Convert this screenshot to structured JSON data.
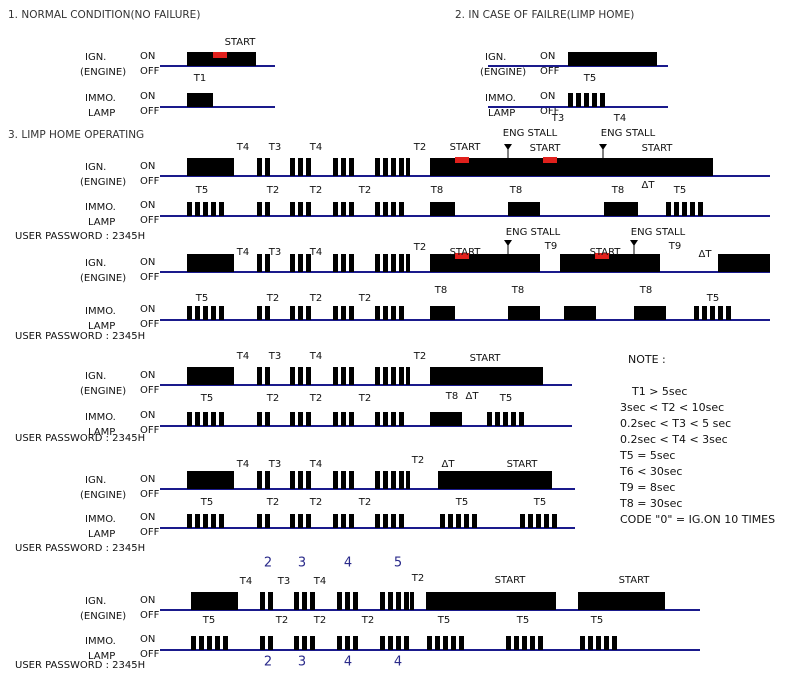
{
  "normal": {
    "title": "1. NORMAL CONDITION(NO FAILURE)",
    "annotations": [
      "START",
      "T1"
    ]
  },
  "failure": {
    "title": "2. IN CASE OF FAILRE(LIMP HOME)",
    "annotations": [
      "T5",
      "T3",
      "T4"
    ]
  },
  "signals": {
    "ign": "IGN.",
    "engine": "(ENGINE)",
    "immo": "IMMO.",
    "lamp": "LAMP",
    "on": "ON",
    "off": "OFF"
  },
  "limp_home": {
    "title": "3. LIMP HOME OPERATING",
    "password": "USER PASSWORD : 2345H",
    "rows": [
      {
        "annotations": [
          "T4",
          "T3",
          "T4",
          "T2",
          "START",
          "ENG STALL",
          "START",
          "ENG STALL",
          "START",
          "T5",
          "T2",
          "T2",
          "T2",
          "T8",
          "T8",
          "T8",
          "ΔT",
          "T5"
        ]
      },
      {
        "annotations": [
          "T4",
          "T3",
          "T4",
          "T2",
          "START",
          "ENG STALL",
          "T9",
          "START",
          "ENG STALL",
          "T9",
          "ΔT",
          "T5",
          "T2",
          "T2",
          "T2",
          "T8",
          "T8",
          "T8",
          "T5"
        ]
      },
      {
        "annotations": [
          "T4",
          "T3",
          "T4",
          "T2",
          "START",
          "T5",
          "T2",
          "T2",
          "T2",
          "T8",
          "ΔT",
          "T5"
        ]
      },
      {
        "annotations": [
          "T4",
          "T3",
          "T4",
          "T2",
          "ΔT",
          "START",
          "T5",
          "T2",
          "T2",
          "T2",
          "T5",
          "T5"
        ]
      },
      {
        "annotations": [
          "T4",
          "T3",
          "T4",
          "T2",
          "START",
          "START",
          "2",
          "3",
          "4",
          "5",
          "T5",
          "T2",
          "T2",
          "T2",
          "T5",
          "T5",
          "T5",
          "2",
          "3",
          "4",
          "4"
        ]
      }
    ]
  },
  "note": {
    "title": "NOTE :",
    "lines": [
      "T1 > 5sec",
      "3sec < T2 < 10sec",
      "0.2sec < T3 < 5 sec",
      "0.2sec < T4 < 3sec",
      "T5 = 5sec",
      "T6 < 30sec",
      "T9 = 8sec",
      "T8 = 30sec",
      "CODE \"0\" = IG.ON 10 TIMES"
    ]
  }
}
